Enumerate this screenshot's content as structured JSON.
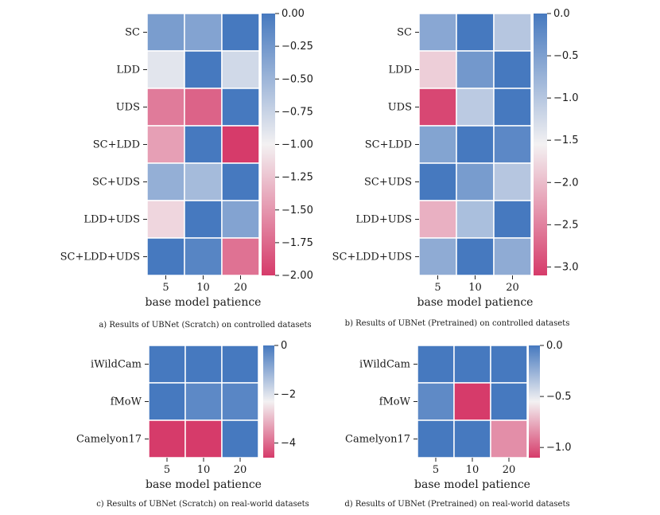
{
  "colors": {
    "low": "#d63b6a",
    "mid": "#f3f1f2",
    "high": "#4679bf",
    "grid": "#ffffff"
  },
  "chart_data": [
    {
      "type": "heatmap",
      "caption": "a) Results of UBNet (Scratch) on controlled datasets",
      "xlabel": "base model patience",
      "x_categories": [
        "5",
        "10",
        "20"
      ],
      "y_categories": [
        "SC",
        "LDD",
        "UDS",
        "SC+LDD",
        "SC+UDS",
        "LDD+UDS",
        "SC+LDD+UDS"
      ],
      "values": [
        [
          -0.3,
          -0.35,
          0.0
        ],
        [
          -0.9,
          0.0,
          -0.8
        ],
        [
          -1.65,
          -1.78,
          0.0
        ],
        [
          -1.45,
          0.0,
          -2.0
        ],
        [
          -0.45,
          -0.55,
          0.0
        ],
        [
          -1.15,
          0.0,
          -0.35
        ],
        [
          0.0,
          -0.1,
          -1.7
        ]
      ],
      "vmin": -2.0,
      "vmax": 0.0,
      "colorbar_ticks": [
        0.0,
        -0.25,
        -0.5,
        -0.75,
        -1.0,
        -1.25,
        -1.5,
        -1.75,
        -2.0
      ],
      "colorbar_labels": [
        "0.00",
        "−0.25",
        "−0.50",
        "−0.75",
        "−1.00",
        "−1.25",
        "−1.50",
        "−1.75",
        "−2.00"
      ]
    },
    {
      "type": "heatmap",
      "caption": "b) Results of UBNet (Pretrained) on controlled datasets",
      "xlabel": "base model patience",
      "x_categories": [
        "5",
        "10",
        "20"
      ],
      "y_categories": [
        "SC",
        "LDD",
        "UDS",
        "SC+LDD",
        "SC+UDS",
        "LDD+UDS",
        "SC+LDD+UDS"
      ],
      "values": [
        [
          -0.6,
          0.0,
          -1.0
        ],
        [
          -1.85,
          -0.4,
          0.0
        ],
        [
          -3.0,
          -1.05,
          0.0
        ],
        [
          -0.55,
          0.0,
          -0.2
        ],
        [
          0.0,
          -0.45,
          -1.0
        ],
        [
          -2.1,
          -0.9,
          0.0
        ],
        [
          -0.65,
          0.0,
          -0.65
        ]
      ],
      "vmin": -3.1,
      "vmax": 0.0,
      "colorbar_ticks": [
        0.0,
        -0.5,
        -1.0,
        -1.5,
        -2.0,
        -2.5,
        -3.0
      ],
      "colorbar_labels": [
        "0.0",
        "−0.5",
        "−1.0",
        "−1.5",
        "−2.0",
        "−2.5",
        "−3.0"
      ]
    },
    {
      "type": "heatmap",
      "caption": "c) Results of UBNet (Scratch) on real-world datasets",
      "xlabel": "base model patience",
      "x_categories": [
        "5",
        "10",
        "20"
      ],
      "y_categories": [
        "iWildCam",
        "fMoW",
        "Camelyon17"
      ],
      "values": [
        [
          0.0,
          0.0,
          0.0
        ],
        [
          0.0,
          -0.3,
          -0.25
        ],
        [
          -4.6,
          -4.6,
          0.0
        ]
      ],
      "vmin": -4.6,
      "vmax": 0.0,
      "colorbar_ticks": [
        0,
        -2,
        -4
      ],
      "colorbar_labels": [
        "0",
        "−2",
        "−4"
      ]
    },
    {
      "type": "heatmap",
      "caption": "d) Results of UBNet (Pretrained) on real-world datasets",
      "xlabel": "base model patience",
      "x_categories": [
        "5",
        "10",
        "20"
      ],
      "y_categories": [
        "iWildCam",
        "fMoW",
        "Camelyon17"
      ],
      "values": [
        [
          0.0,
          0.0,
          0.0
        ],
        [
          -0.08,
          -1.1,
          0.0
        ],
        [
          0.0,
          0.0,
          -0.85
        ]
      ],
      "vmin": -1.1,
      "vmax": 0.0,
      "colorbar_ticks": [
        0.0,
        -0.5,
        -1.0
      ],
      "colorbar_labels": [
        "0.0",
        "−0.5",
        "−1.0"
      ]
    }
  ]
}
